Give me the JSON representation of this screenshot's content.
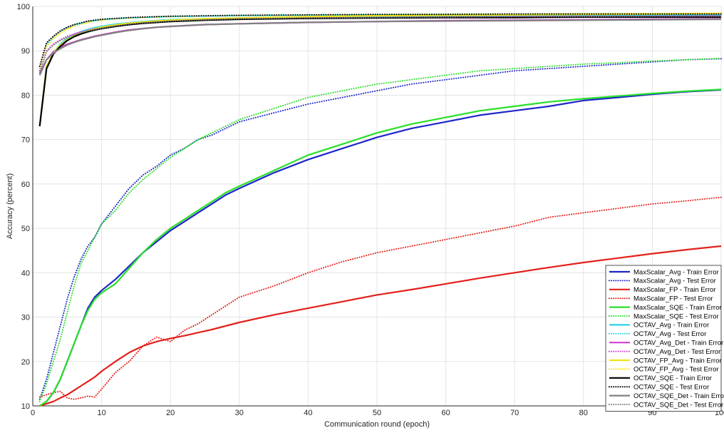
{
  "chart_data": {
    "type": "line",
    "title": "",
    "xlabel": "Communication round (epoch)",
    "ylabel": "Accuracy (percent)",
    "xlim": [
      0,
      100
    ],
    "ylim": [
      10,
      100
    ],
    "xticks": [
      0,
      10,
      20,
      30,
      40,
      50,
      60,
      70,
      80,
      90,
      100
    ],
    "yticks": [
      10,
      20,
      30,
      40,
      50,
      60,
      70,
      80,
      90,
      100
    ],
    "xtick_labels": [
      "0",
      "10",
      "20",
      "30",
      "40",
      "50",
      "60",
      "70",
      "80",
      "90",
      "100"
    ],
    "ytick_labels": [
      "10",
      "20",
      "30",
      "40",
      "50",
      "60",
      "70",
      "80",
      "90",
      "100"
    ],
    "grid": true,
    "legend_position": "bottom-right",
    "series": [
      {
        "name": "MaxScalar_Avg - Train Error",
        "color": "#1f26c8",
        "style": "solid",
        "x": [
          1,
          2,
          3,
          4,
          5,
          6,
          7,
          8,
          9,
          10,
          12,
          14,
          16,
          18,
          20,
          22,
          24,
          26,
          28,
          30,
          35,
          40,
          45,
          50,
          55,
          60,
          65,
          70,
          75,
          80,
          85,
          90,
          95,
          100
        ],
        "y": [
          10,
          11,
          13,
          16,
          20,
          24,
          28,
          32,
          34.5,
          36,
          38.5,
          41.5,
          44.5,
          47,
          49.5,
          51.5,
          53.5,
          55.5,
          57.5,
          59,
          62.5,
          65.5,
          68,
          70.5,
          72.5,
          74,
          75.5,
          76.5,
          77.5,
          78.8,
          79.5,
          80.2,
          80.8,
          81.2
        ]
      },
      {
        "name": "MaxScalar_Avg - Test Error",
        "color": "#1f26c8",
        "style": "dotted",
        "x": [
          1,
          2,
          3,
          4,
          5,
          6,
          7,
          8,
          9,
          10,
          12,
          14,
          16,
          18,
          20,
          22,
          24,
          26,
          28,
          30,
          35,
          40,
          45,
          50,
          55,
          60,
          65,
          70,
          75,
          80,
          85,
          90,
          95,
          100
        ],
        "y": [
          11.5,
          16,
          22,
          28,
          34,
          39,
          43,
          46,
          48,
          51,
          55,
          59,
          62,
          64,
          66.5,
          68,
          70,
          71,
          72.5,
          74,
          76,
          78,
          79.5,
          81,
          82.5,
          83.5,
          84.5,
          85.5,
          86,
          86.5,
          87,
          87.5,
          88,
          88.2
        ]
      },
      {
        "name": "MaxScalar_FP - Train Error",
        "color": "#e3201b",
        "style": "solid",
        "x": [
          1,
          2,
          3,
          4,
          5,
          6,
          7,
          8,
          9,
          10,
          12,
          14,
          16,
          18,
          20,
          22,
          24,
          26,
          28,
          30,
          35,
          40,
          45,
          50,
          55,
          60,
          65,
          70,
          75,
          80,
          85,
          90,
          95,
          100
        ],
        "y": [
          10,
          10.5,
          11,
          11.8,
          12.5,
          13.5,
          14.5,
          15.5,
          16.5,
          17.8,
          20,
          22,
          23.5,
          24.5,
          25.2,
          25.8,
          26.5,
          27.2,
          28,
          28.8,
          30.5,
          32,
          33.5,
          35,
          36.2,
          37.5,
          38.8,
          40,
          41.2,
          42.3,
          43.3,
          44.3,
          45.2,
          46
        ]
      },
      {
        "name": "MaxScalar_FP - Test Error",
        "color": "#e3201b",
        "style": "dotted",
        "x": [
          1,
          2,
          3,
          4,
          5,
          6,
          7,
          8,
          9,
          10,
          12,
          14,
          16,
          18,
          20,
          22,
          24,
          26,
          28,
          30,
          35,
          40,
          45,
          50,
          55,
          60,
          65,
          70,
          75,
          80,
          85,
          90,
          95,
          100
        ],
        "y": [
          12,
          12.5,
          13,
          13.3,
          11.8,
          11.5,
          11.8,
          12.2,
          12,
          13.8,
          17.5,
          20,
          23.5,
          25.5,
          24.5,
          27,
          28.5,
          30.5,
          32.5,
          34.5,
          37,
          40,
          42.5,
          44.5,
          46,
          47.5,
          49,
          50.5,
          52.5,
          53.5,
          54.5,
          55.5,
          56.2,
          57
        ]
      },
      {
        "name": "MaxScalar_SQE - Train Error",
        "color": "#2adf2a",
        "style": "solid",
        "x": [
          1,
          2,
          3,
          4,
          5,
          6,
          7,
          8,
          9,
          10,
          12,
          14,
          16,
          18,
          20,
          22,
          24,
          26,
          28,
          30,
          35,
          40,
          45,
          50,
          55,
          60,
          65,
          70,
          75,
          80,
          85,
          90,
          95,
          100
        ],
        "y": [
          10,
          11,
          13,
          16,
          20,
          24,
          28,
          31.5,
          34,
          35.5,
          37.5,
          41,
          44.5,
          47.5,
          50,
          52,
          54,
          56,
          58,
          59.5,
          63,
          66.5,
          69,
          71.5,
          73.5,
          75,
          76.5,
          77.5,
          78.5,
          79.2,
          79.8,
          80.4,
          80.9,
          81.3
        ]
      },
      {
        "name": "MaxScalar_SQE - Test Error",
        "color": "#2adf2a",
        "style": "dotted",
        "x": [
          1,
          2,
          3,
          4,
          5,
          6,
          7,
          8,
          9,
          10,
          12,
          14,
          16,
          18,
          20,
          22,
          24,
          26,
          28,
          30,
          35,
          40,
          45,
          50,
          55,
          60,
          65,
          70,
          75,
          80,
          85,
          90,
          95,
          100
        ],
        "y": [
          11,
          15,
          20,
          25,
          31,
          37,
          42,
          45,
          48,
          51,
          54,
          58,
          61,
          63.5,
          66,
          68,
          70,
          71.5,
          73,
          74.5,
          77,
          79.5,
          81,
          82.5,
          83.5,
          84.5,
          85.5,
          86,
          86.5,
          87,
          87.3,
          87.7,
          88,
          88.3
        ]
      },
      {
        "name": "OCTAV_Avg - Train Error",
        "color": "#29d3e3",
        "style": "solid",
        "x": [
          1,
          2,
          3,
          4,
          5,
          6,
          7,
          8,
          9,
          10,
          12,
          14,
          16,
          18,
          20,
          25,
          30,
          40,
          50,
          60,
          70,
          80,
          90,
          100
        ],
        "y": [
          73,
          86.5,
          89.5,
          91.5,
          92.8,
          93.7,
          94.3,
          94.8,
          95.2,
          95.5,
          96,
          96.3,
          96.6,
          96.8,
          97,
          97.2,
          97.4,
          97.6,
          97.7,
          97.8,
          97.9,
          98,
          98,
          98.1
        ]
      },
      {
        "name": "OCTAV_Avg - Test Error",
        "color": "#29d3e3",
        "style": "dotted",
        "x": [
          1,
          2,
          3,
          4,
          5,
          6,
          7,
          8,
          9,
          10,
          12,
          14,
          16,
          18,
          20,
          25,
          30,
          40,
          50,
          60,
          70,
          80,
          90,
          100
        ],
        "y": [
          86,
          91.5,
          93,
          94.3,
          95.2,
          95.8,
          96.2,
          96.6,
          96.8,
          97,
          97.2,
          97.4,
          97.5,
          97.6,
          97.7,
          97.8,
          97.9,
          98,
          98.1,
          98.2,
          98.2,
          98.3,
          98.3,
          98.4
        ]
      },
      {
        "name": "OCTAV_Avg_Det - Train Error",
        "color": "#d63bd6",
        "style": "solid",
        "x": [
          1,
          2,
          3,
          4,
          5,
          6,
          7,
          8,
          9,
          10,
          12,
          14,
          16,
          18,
          20,
          25,
          30,
          40,
          50,
          60,
          70,
          80,
          90,
          100
        ],
        "y": [
          85,
          88,
          89.8,
          90.8,
          91.5,
          92,
          92.5,
          92.9,
          93.3,
          93.6,
          94.2,
          94.7,
          95,
          95.3,
          95.5,
          95.9,
          96.1,
          96.4,
          96.6,
          96.8,
          96.9,
          97,
          97.1,
          97.2
        ]
      },
      {
        "name": "OCTAV_Avg_Det - Test Error",
        "color": "#d63bd6",
        "style": "dotted",
        "x": [
          1,
          2,
          3,
          4,
          5,
          6,
          7,
          8,
          9,
          10,
          12,
          14,
          16,
          18,
          20,
          25,
          30,
          40,
          50,
          60,
          70,
          80,
          90,
          100
        ],
        "y": [
          85.5,
          90,
          91.5,
          92.5,
          93.3,
          93.8,
          94.3,
          94.7,
          95,
          95.3,
          95.8,
          96.1,
          96.4,
          96.6,
          96.8,
          97,
          97.2,
          97.4,
          97.5,
          97.6,
          97.7,
          97.8,
          97.8,
          97.9
        ]
      },
      {
        "name": "OCTAV_FP_Avg - Train Error",
        "color": "#f5e21a",
        "style": "solid",
        "x": [
          1,
          2,
          3,
          4,
          5,
          6,
          7,
          8,
          9,
          10,
          12,
          14,
          16,
          18,
          20,
          25,
          30,
          40,
          50,
          60,
          70,
          80,
          90,
          100
        ],
        "y": [
          73,
          86.5,
          89.5,
          91.3,
          92.5,
          93.4,
          94,
          94.5,
          94.9,
          95.3,
          95.8,
          96.2,
          96.5,
          96.7,
          96.9,
          97.2,
          97.4,
          97.7,
          97.9,
          98,
          98.1,
          98.2,
          98.3,
          98.4
        ]
      },
      {
        "name": "OCTAV_FP_Avg - Test Error",
        "color": "#f5e21a",
        "style": "dotted",
        "x": [
          1,
          2,
          3,
          4,
          5,
          6,
          7,
          8,
          9,
          10,
          12,
          14,
          16,
          18,
          20,
          25,
          30,
          40,
          50,
          60,
          70,
          80,
          90,
          100
        ],
        "y": [
          86,
          91,
          92.8,
          94,
          94.9,
          95.5,
          96,
          96.4,
          96.7,
          96.9,
          97.2,
          97.4,
          97.5,
          97.6,
          97.7,
          97.9,
          98,
          98.1,
          98.2,
          98.3,
          98.3,
          98.4,
          98.4,
          98.5
        ]
      },
      {
        "name": "OCTAV_SQE - Train Error",
        "color": "#000000",
        "style": "solid",
        "x": [
          1,
          2,
          3,
          4,
          5,
          6,
          7,
          8,
          9,
          10,
          12,
          14,
          16,
          18,
          20,
          25,
          30,
          40,
          50,
          60,
          70,
          80,
          90,
          100
        ],
        "y": [
          73,
          86,
          89.3,
          91,
          92.3,
          93.2,
          93.8,
          94.3,
          94.7,
          95,
          95.5,
          95.9,
          96.2,
          96.4,
          96.6,
          96.9,
          97.1,
          97.3,
          97.4,
          97.5,
          97.5,
          97.6,
          97.6,
          97.6
        ]
      },
      {
        "name": "OCTAV_SQE - Test Error",
        "color": "#000000",
        "style": "dotted",
        "x": [
          1,
          2,
          3,
          4,
          5,
          6,
          7,
          8,
          9,
          10,
          12,
          14,
          16,
          18,
          20,
          25,
          30,
          40,
          50,
          60,
          70,
          80,
          90,
          100
        ],
        "y": [
          86.5,
          91.8,
          93.3,
          94.5,
          95.3,
          95.9,
          96.3,
          96.7,
          96.9,
          97.1,
          97.3,
          97.5,
          97.6,
          97.7,
          97.8,
          97.9,
          98,
          98.1,
          98.2,
          98.2,
          98.3,
          98.3,
          98.3,
          98.3
        ]
      },
      {
        "name": "OCTAV_SQE_Det - Train Error",
        "color": "#808080",
        "style": "solid",
        "x": [
          1,
          2,
          3,
          4,
          5,
          6,
          7,
          8,
          9,
          10,
          12,
          14,
          16,
          18,
          20,
          25,
          30,
          40,
          50,
          60,
          70,
          80,
          90,
          100
        ],
        "y": [
          84.5,
          88,
          89.5,
          90.5,
          91.3,
          91.9,
          92.4,
          92.8,
          93.2,
          93.5,
          94.1,
          94.6,
          95,
          95.3,
          95.5,
          95.9,
          96.1,
          96.4,
          96.6,
          96.7,
          96.8,
          96.9,
          97,
          97.1
        ]
      },
      {
        "name": "OCTAV_SQE_Det - Test Error",
        "color": "#808080",
        "style": "dotted",
        "x": [
          1,
          2,
          3,
          4,
          5,
          6,
          7,
          8,
          9,
          10,
          12,
          14,
          16,
          18,
          20,
          25,
          30,
          40,
          50,
          60,
          70,
          80,
          90,
          100
        ],
        "y": [
          85,
          89.8,
          91.3,
          92.3,
          93,
          93.6,
          94.1,
          94.5,
          94.8,
          95.1,
          95.6,
          96,
          96.3,
          96.5,
          96.7,
          97,
          97.2,
          97.4,
          97.5,
          97.6,
          97.7,
          97.7,
          97.8,
          97.8
        ]
      }
    ]
  }
}
